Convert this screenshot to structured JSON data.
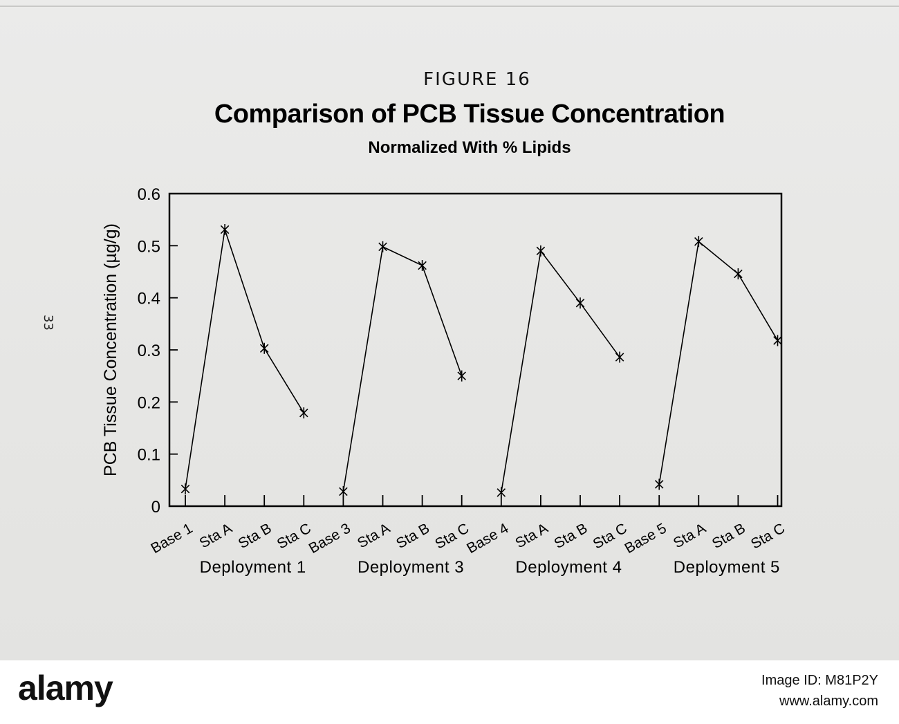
{
  "page_number": "33",
  "figure_label": "FIGURE 16",
  "footer": {
    "logo": "alamy",
    "image_id": "Image ID: M81P2Y",
    "url": "www.alamy.com"
  },
  "chart_data": {
    "type": "line",
    "title": "Comparison of PCB Tissue Concentration",
    "subtitle": "Normalized With % Lipids",
    "ylabel": "PCB Tissue Concentration (µg/g)",
    "xlabel": "",
    "ylim": [
      0,
      0.6
    ],
    "yticks": [
      "0",
      "0.1",
      "0.2",
      "0.3",
      "0.4",
      "0.5",
      "0.6"
    ],
    "grid": false,
    "legend": "none",
    "marker": "asterisk",
    "line_color": "#000000",
    "groups": [
      {
        "name": "Deployment 1",
        "categories": [
          "Base 1",
          "Sta A",
          "Sta B",
          "Sta C"
        ],
        "values": [
          0.033,
          0.531,
          0.303,
          0.179
        ]
      },
      {
        "name": "Deployment 3",
        "categories": [
          "Base 3",
          "Sta A",
          "Sta B",
          "Sta C"
        ],
        "values": [
          0.028,
          0.498,
          0.462,
          0.25
        ]
      },
      {
        "name": "Deployment 4",
        "categories": [
          "Base 4",
          "Sta A",
          "Sta B",
          "Sta C"
        ],
        "values": [
          0.026,
          0.49,
          0.39,
          0.286
        ]
      },
      {
        "name": "Deployment 5",
        "categories": [
          "Base 5",
          "Sta A",
          "Sta B",
          "Sta C"
        ],
        "values": [
          0.042,
          0.508,
          0.446,
          0.318
        ]
      }
    ]
  }
}
